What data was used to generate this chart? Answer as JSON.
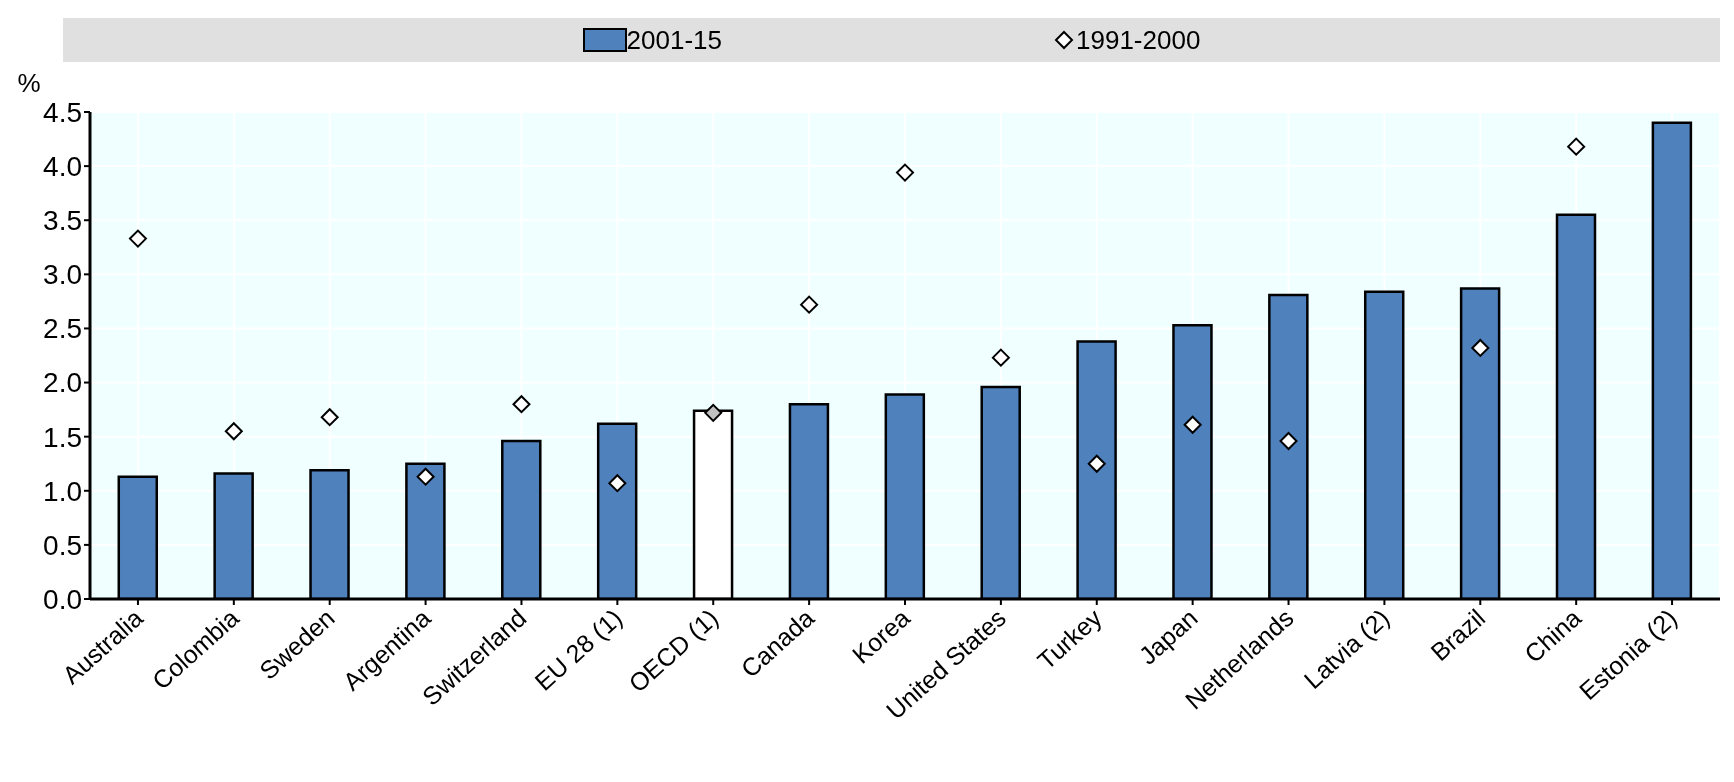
{
  "chart_data": {
    "type": "bar",
    "ylabel": "%",
    "categories": [
      "Australia",
      "Colombia",
      "Sweden",
      "Argentina",
      "Switzerland",
      "EU 28 (1)",
      "OECD (1)",
      "Canada",
      "Korea",
      "United States",
      "Turkey",
      "Japan",
      "Netherlands",
      "Latvia (2)",
      "Brazil",
      "China",
      "Estonia (2)"
    ],
    "series": [
      {
        "name": "2001-15",
        "color": "#4f81bd",
        "colors": [
          "#4f81bd",
          "#4f81bd",
          "#4f81bd",
          "#4f81bd",
          "#4f81bd",
          "#4f81bd",
          "#ffffff",
          "#4f81bd",
          "#4f81bd",
          "#4f81bd",
          "#4f81bd",
          "#4f81bd",
          "#4f81bd",
          "#4f81bd",
          "#4f81bd",
          "#4f81bd",
          "#4f81bd"
        ],
        "values": [
          1.13,
          1.16,
          1.19,
          1.25,
          1.46,
          1.62,
          1.74,
          1.8,
          1.89,
          1.96,
          2.38,
          2.53,
          2.81,
          2.84,
          2.87,
          3.55,
          4.4
        ]
      },
      {
        "name": "1991-2000",
        "type": "scatter",
        "color": "#ffffff",
        "colors": [
          "#ffffff",
          "#ffffff",
          "#ffffff",
          "#ffffff",
          "#ffffff",
          "#ffffff",
          "#c0c0c0",
          "#ffffff",
          "#ffffff",
          "#ffffff",
          "#ffffff",
          "#ffffff",
          "#ffffff",
          null,
          "#ffffff",
          "#ffffff",
          null
        ],
        "values": [
          3.33,
          1.55,
          1.68,
          1.13,
          1.8,
          1.07,
          1.72,
          2.72,
          3.94,
          2.23,
          1.25,
          1.61,
          1.46,
          null,
          2.32,
          4.18,
          null
        ]
      }
    ],
    "ylim": [
      0,
      4.5
    ],
    "yticks": [
      {
        "value": 0,
        "label": "0.0"
      },
      0.5,
      {
        "value": 1,
        "label": "1.0"
      },
      1.5,
      {
        "value": 2,
        "label": "2.0"
      },
      2.5,
      {
        "value": 3,
        "label": "3.0"
      },
      3.5,
      {
        "value": 4,
        "label": "4.0"
      },
      4.5
    ],
    "grid": true,
    "legend": "top",
    "marker": "diamond"
  }
}
